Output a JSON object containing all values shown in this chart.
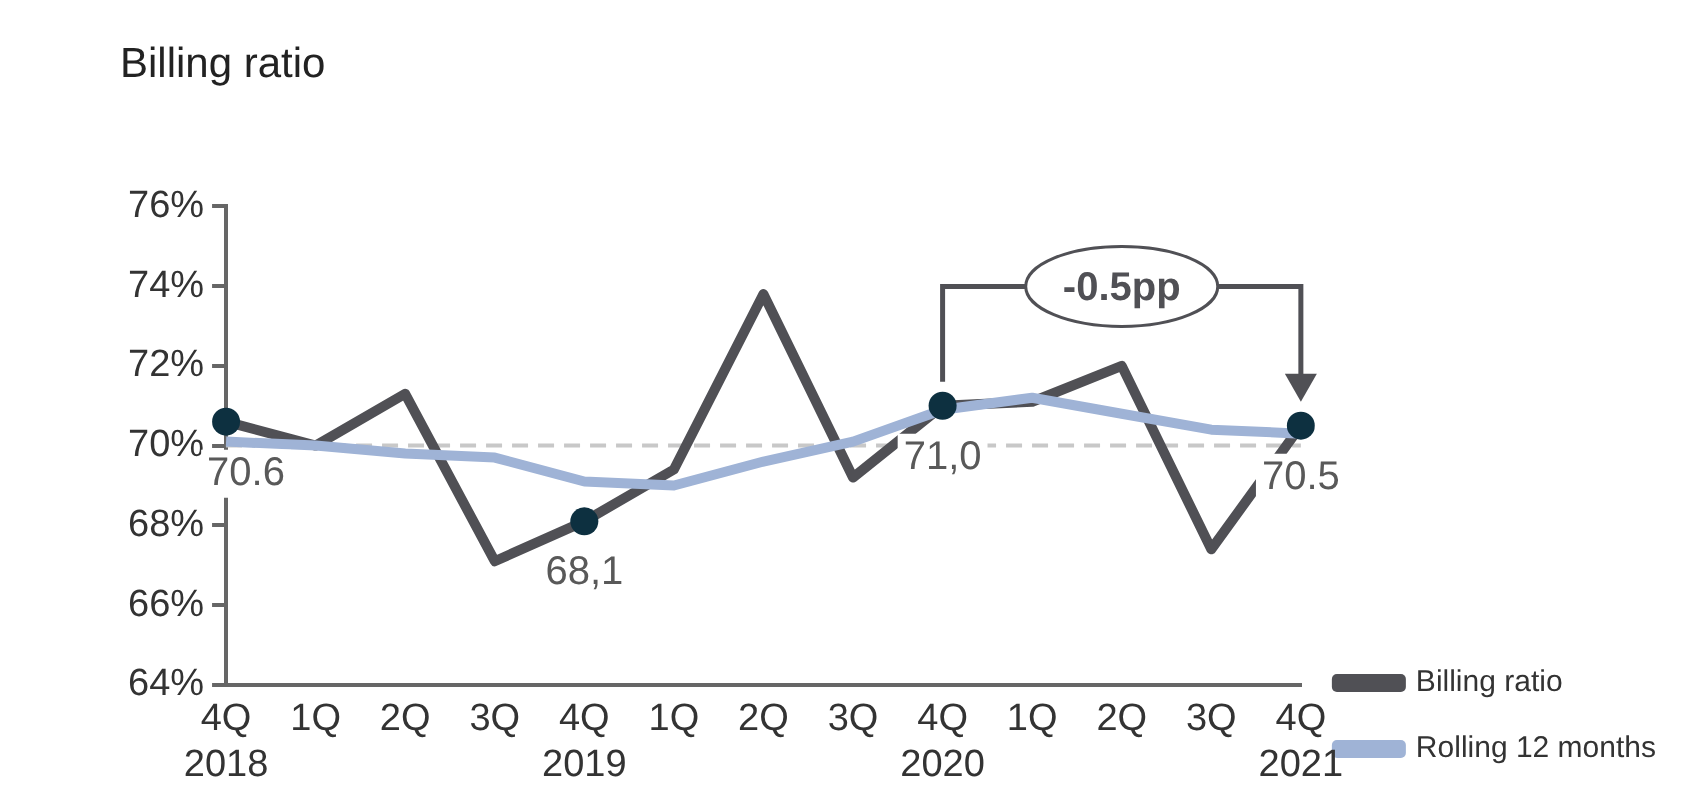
{
  "chart_data": {
    "type": "line",
    "title": "Billing ratio",
    "categories": [
      "4Q\n2018",
      "1Q",
      "2Q",
      "3Q",
      "4Q\n2019",
      "1Q",
      "2Q",
      "3Q",
      "4Q\n2020",
      "1Q",
      "2Q",
      "3Q",
      "4Q\n2021"
    ],
    "series": [
      {
        "name": "Billing ratio",
        "color": "#505055",
        "values": [
          70.6,
          70.0,
          71.3,
          67.1,
          68.1,
          69.4,
          73.8,
          69.2,
          71.0,
          71.1,
          72.0,
          67.4,
          70.5
        ],
        "marker": "none"
      },
      {
        "type": "scatter",
        "color": "#0d3040",
        "x": [
          "4Q\n2018",
          "4Q\n2019",
          "4Q\n2020",
          "4Q\n2021"
        ],
        "values": [
          70.6,
          68.1,
          71.0,
          70.5
        ],
        "value_labels": [
          "70.6",
          "68,1",
          "71,0",
          "70.5"
        ],
        "marker": "circle"
      },
      {
        "name": "Rolling 12 months",
        "color": "#9fb3d6",
        "values": [
          70.1,
          70.0,
          69.8,
          69.7,
          69.1,
          69.0,
          69.6,
          70.1,
          70.9,
          71.2,
          70.8,
          70.4,
          70.3
        ],
        "marker": "none"
      }
    ],
    "ylim": [
      64,
      76
    ],
    "yticks": [
      {
        "value": 64,
        "label": "64%"
      },
      {
        "value": 66,
        "label": "66%"
      },
      {
        "value": 68,
        "label": "68%"
      },
      {
        "value": 70,
        "label": "70%"
      },
      {
        "value": 72,
        "label": "72%"
      },
      {
        "value": 74,
        "label": "74%"
      },
      {
        "value": 76,
        "label": "76%"
      }
    ],
    "ref_lines": [
      {
        "axis": "y",
        "value": 70,
        "label": null,
        "color": "#c8c8c8",
        "line_style": "dashed"
      }
    ],
    "annotations": [
      "-0.5pp"
    ],
    "grid": false,
    "legend": "right"
  }
}
